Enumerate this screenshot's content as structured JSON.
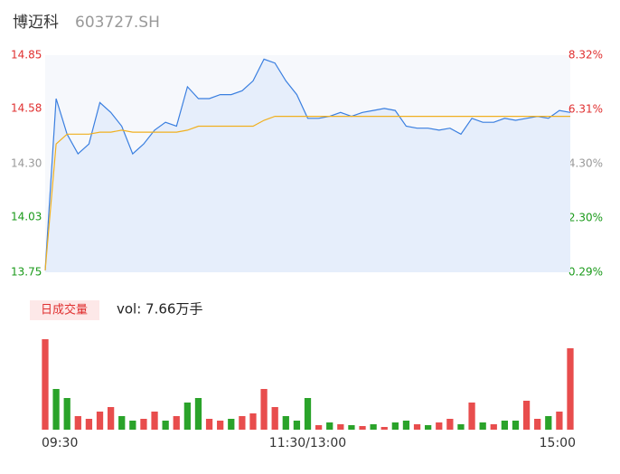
{
  "chart_data": {
    "type": "line",
    "title": "博迈科",
    "subtitle": "603727.SH",
    "categories": [
      "09:30",
      null,
      null,
      null,
      null,
      null,
      null,
      null,
      null,
      null,
      null,
      null,
      null,
      null,
      null,
      null,
      null,
      null,
      null,
      null,
      null,
      null,
      null,
      null,
      "11:30/13:00",
      null,
      null,
      null,
      null,
      null,
      null,
      null,
      null,
      null,
      null,
      null,
      null,
      null,
      null,
      null,
      null,
      null,
      null,
      null,
      null,
      null,
      null,
      null,
      "15:00"
    ],
    "series": [
      {
        "name": "price",
        "color": "#3a7fe0",
        "values": [
          13.76,
          14.63,
          14.45,
          14.35,
          14.4,
          14.61,
          14.56,
          14.49,
          14.35,
          14.4,
          14.47,
          14.51,
          14.49,
          14.69,
          14.63,
          14.63,
          14.65,
          14.65,
          14.67,
          14.72,
          14.83,
          14.81,
          14.72,
          14.65,
          14.53,
          14.53,
          14.54,
          14.56,
          14.54,
          14.56,
          14.57,
          14.58,
          14.57,
          14.49,
          14.48,
          14.48,
          14.47,
          14.48,
          14.45,
          14.53,
          14.51,
          14.51,
          14.53,
          14.52,
          14.53,
          14.54,
          14.53,
          14.57,
          14.56
        ]
      },
      {
        "name": "average",
        "color": "#f0b020",
        "values": [
          13.76,
          14.4,
          14.45,
          14.45,
          14.45,
          14.46,
          14.46,
          14.47,
          14.46,
          14.46,
          14.46,
          14.46,
          14.46,
          14.47,
          14.49,
          14.49,
          14.49,
          14.49,
          14.49,
          14.49,
          14.52,
          14.54,
          14.54,
          14.54,
          14.54,
          14.54,
          14.54,
          14.54,
          14.54,
          14.54,
          14.54,
          14.54,
          14.54,
          14.54,
          14.54,
          14.54,
          14.54,
          14.54,
          14.54,
          14.54,
          14.54,
          14.54,
          14.54,
          14.54,
          14.54,
          14.54,
          14.54,
          14.54,
          14.54
        ]
      }
    ],
    "ylim": [
      13.75,
      14.85
    ],
    "yticks": [
      13.75,
      14.03,
      {
        "value": 14.3,
        "label": "14.30"
      },
      14.58,
      14.85
    ],
    "y2lim": [
      0.29,
      8.32
    ],
    "y2ticks": [
      {
        "value": 0.29,
        "label": "0.29%"
      },
      {
        "value": 2.3,
        "label": "2.30%"
      },
      {
        "value": 4.3,
        "label": "4.30%"
      },
      {
        "value": 6.31,
        "label": "6.31%"
      },
      {
        "value": 8.32,
        "label": "8.32%"
      }
    ],
    "tick_colors": [
      "#1a9a1a",
      "#1a9a1a",
      "#999999",
      "#e03030",
      "#e03030"
    ],
    "volume": {
      "label": "日成交量",
      "summary": "vol: 7.66万手",
      "values": [
        100,
        45,
        35,
        15,
        12,
        20,
        25,
        15,
        10,
        12,
        20,
        10,
        15,
        30,
        35,
        12,
        10,
        12,
        15,
        18,
        45,
        25,
        15,
        10,
        35,
        5,
        8,
        6,
        5,
        4,
        6,
        3,
        8,
        10,
        6,
        5,
        8,
        12,
        6,
        30,
        8,
        6,
        10,
        10,
        32,
        12,
        15,
        20,
        90
      ],
      "colors": [
        "#e84d4d",
        "#2aa32a",
        "#2aa32a",
        "#e84d4d",
        "#e84d4d",
        "#e84d4d",
        "#e84d4d",
        "#2aa32a",
        "#2aa32a",
        "#e84d4d",
        "#e84d4d",
        "#2aa32a",
        "#e84d4d",
        "#2aa32a",
        "#2aa32a",
        "#e84d4d",
        "#e84d4d",
        "#2aa32a",
        "#e84d4d",
        "#e84d4d",
        "#e84d4d",
        "#e84d4d",
        "#2aa32a",
        "#2aa32a",
        "#2aa32a",
        "#e84d4d",
        "#2aa32a",
        "#e84d4d",
        "#2aa32a",
        "#e84d4d",
        "#2aa32a",
        "#e84d4d",
        "#2aa32a",
        "#2aa32a",
        "#e84d4d",
        "#2aa32a",
        "#e84d4d",
        "#e84d4d",
        "#2aa32a",
        "#e84d4d",
        "#2aa32a",
        "#e84d4d",
        "#2aa32a",
        "#2aa32a",
        "#e84d4d",
        "#e84d4d",
        "#2aa32a",
        "#e84d4d",
        "#e84d4d"
      ],
      "ylim": [
        0,
        100
      ]
    }
  }
}
